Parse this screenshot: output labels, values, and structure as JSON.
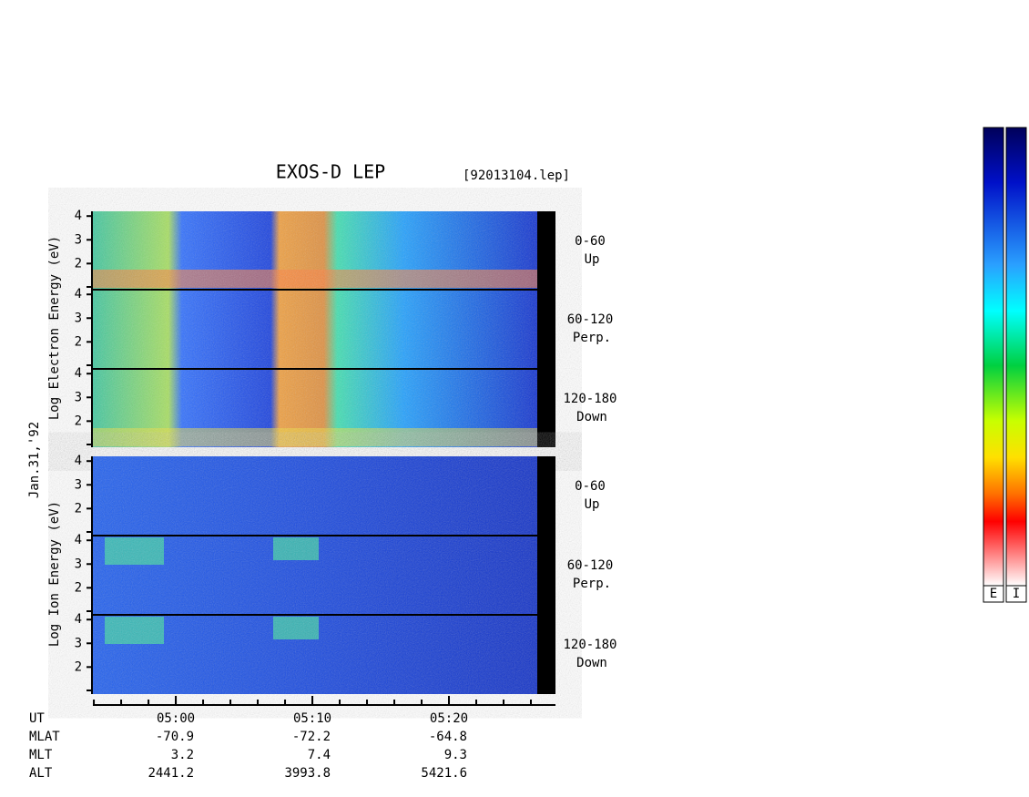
{
  "title": "EXOS-D LEP",
  "file": "[92013104.lep]",
  "date": "Jan.31,'92",
  "electron_axis_label": "Log Electron Energy (eV)",
  "ion_axis_label": "Log Ion Energy (eV)",
  "ylim": [
    0.9,
    4.2
  ],
  "yticks": [
    2,
    3,
    4
  ],
  "xlim": [
    293.93,
    327.8
  ],
  "xticks": [
    {
      "value": 300,
      "label": "05:00"
    },
    {
      "value": 310,
      "label": "05:10"
    },
    {
      "value": 320,
      "label": "05:20"
    }
  ],
  "panels": [
    {
      "angle": "0-60",
      "direction": "Up"
    },
    {
      "angle": "60-120",
      "direction": "Perp."
    },
    {
      "angle": "120-180",
      "direction": "Down"
    },
    {
      "angle": "0-60",
      "direction": "Up"
    },
    {
      "angle": "60-120",
      "direction": "Perp."
    },
    {
      "angle": "120-180",
      "direction": "Down"
    }
  ],
  "orbit": [
    {
      "name": "UT",
      "values": []
    },
    {
      "name": "MLAT",
      "values": [
        "-70.9",
        "-72.2",
        "-64.8"
      ]
    },
    {
      "name": "MLT",
      "values": [
        "3.2",
        "7.4",
        "9.3"
      ]
    },
    {
      "name": "ALT",
      "values": [
        "2441.2",
        "3993.8",
        "5421.6"
      ]
    }
  ],
  "colorbar_labels": [
    "E",
    "I"
  ]
}
